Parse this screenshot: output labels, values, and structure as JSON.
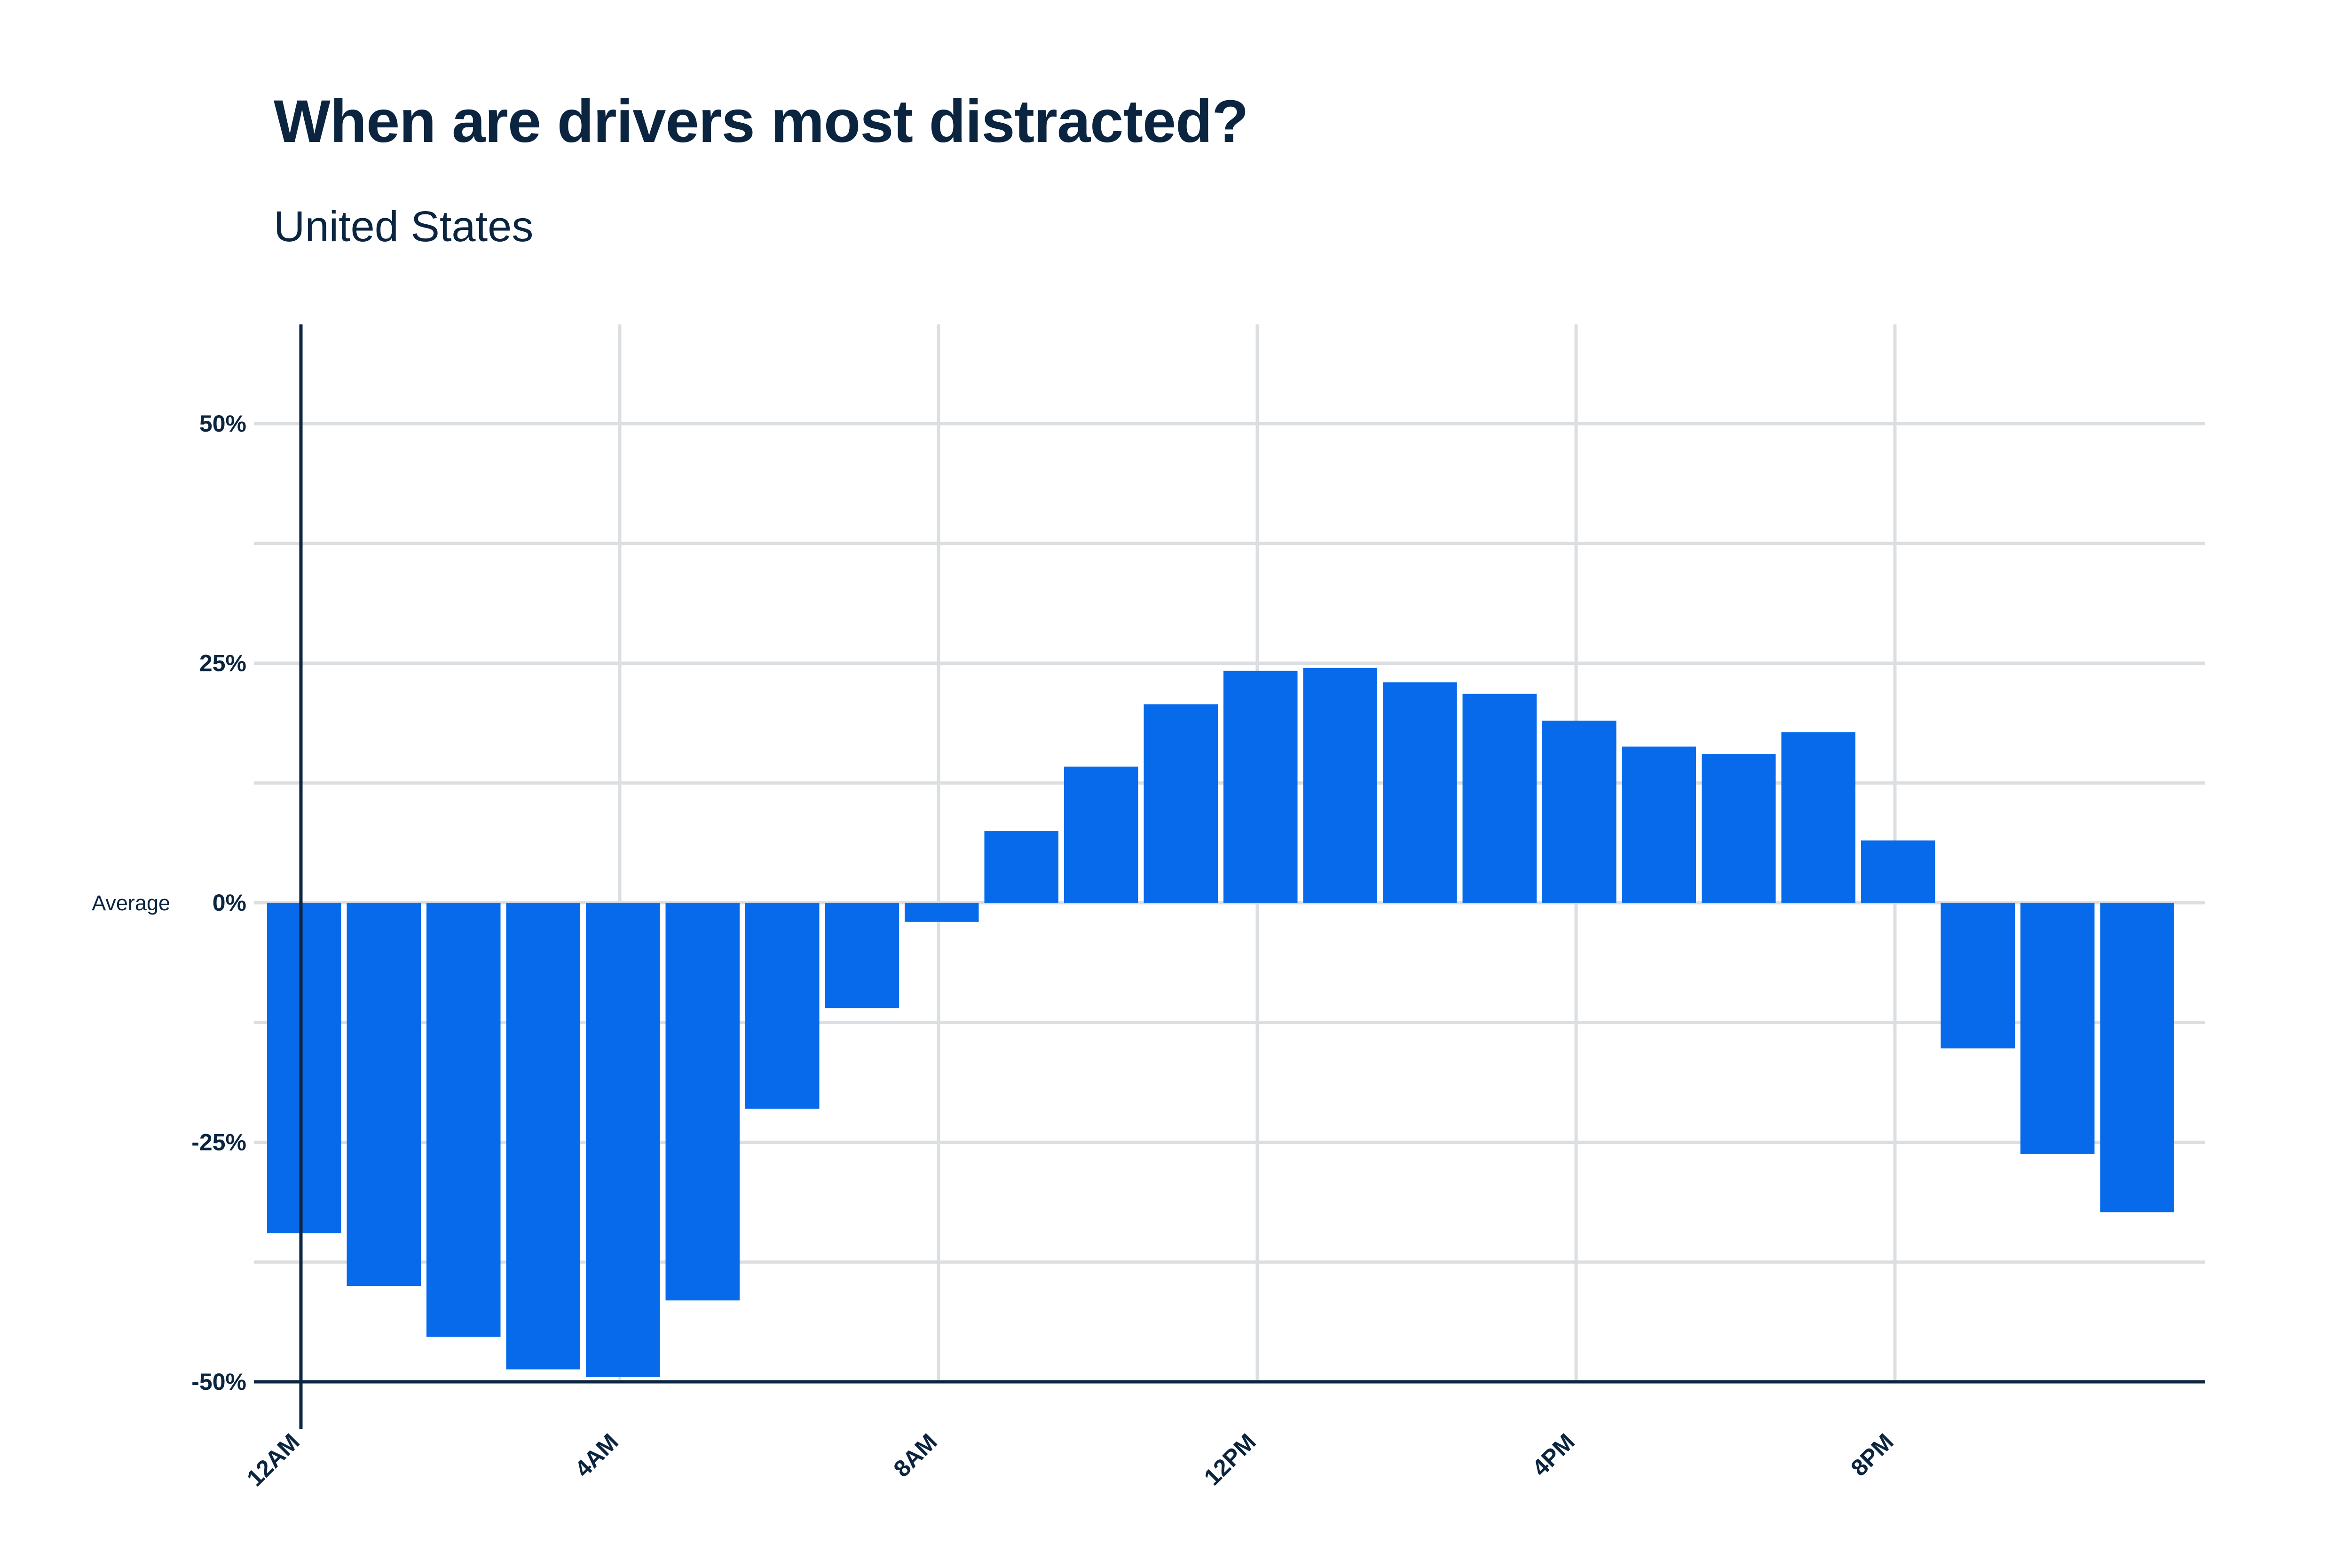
{
  "title": "When are drivers most distracted?",
  "subtitle": "United States",
  "colors": {
    "bar": "#066aeb",
    "grid": "#dcdfe2",
    "axis": "#0b2540",
    "text": "#0b2540"
  },
  "chart_data": {
    "type": "bar",
    "title": "When are drivers most distracted?",
    "subtitle": "United States",
    "xlabel": "",
    "ylabel": "",
    "categories": [
      0,
      1,
      2,
      3,
      4,
      5,
      6,
      7,
      8,
      9,
      10,
      11,
      12,
      13,
      14,
      15,
      16,
      17,
      18,
      19,
      20,
      21,
      22,
      23
    ],
    "values": [
      -34.5,
      -40,
      -45.3,
      -48.7,
      -49.5,
      -41.5,
      -21.5,
      -11,
      -2,
      7.5,
      14.2,
      20.7,
      24.2,
      24.5,
      23,
      21.8,
      19,
      16.3,
      15.5,
      17.8,
      6.5,
      -15.2,
      -26.2,
      -32.3
    ],
    "x_ticks": [
      {
        "at": 0,
        "label": "12AM"
      },
      {
        "at": 4,
        "label": "4AM"
      },
      {
        "at": 8,
        "label": "8AM"
      },
      {
        "at": 12,
        "label": "12PM"
      },
      {
        "at": 16,
        "label": "4PM"
      },
      {
        "at": 20,
        "label": "8PM"
      }
    ],
    "y_ticks": [
      {
        "value": 50,
        "label": "50%"
      },
      {
        "value": 25,
        "label": "25%"
      },
      {
        "value": 0,
        "label": "0%"
      },
      {
        "value": -25,
        "label": "-25%"
      },
      {
        "value": -50,
        "label": "-50%"
      }
    ],
    "baseline_label": "Average",
    "ylim": [
      -50,
      60
    ],
    "xlim": [
      0,
      24
    ],
    "grid": true,
    "legend": "none"
  }
}
